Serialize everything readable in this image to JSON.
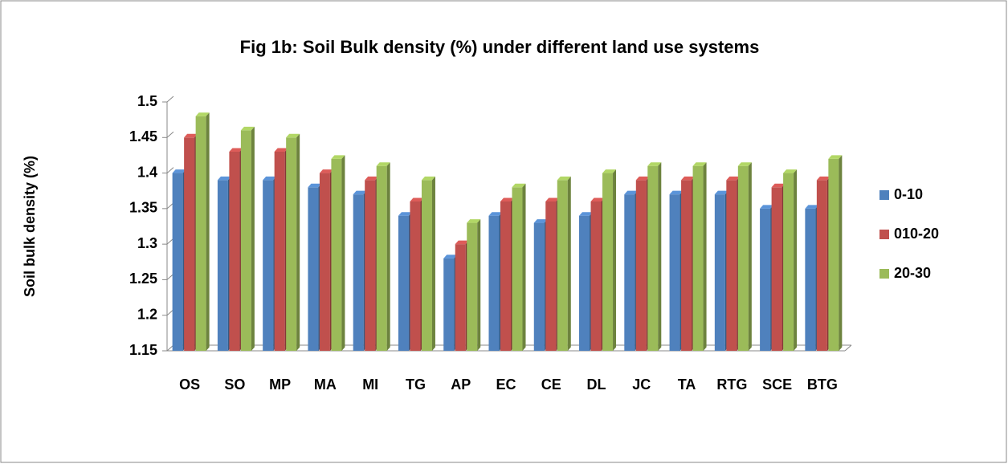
{
  "chart_data": {
    "type": "bar",
    "title": "Fig 1b: Soil Bulk density (%) under different land use systems",
    "y_label": "Soil bulk density (%)",
    "categories": [
      "OS",
      "SO",
      "MP",
      "MA",
      "MI",
      "TG",
      "AP",
      "EC",
      "CE",
      "DL",
      "JC",
      "TA",
      "RTG",
      "SCE",
      "BTG"
    ],
    "series": [
      {
        "name": "0-10",
        "color": "#4f81bd",
        "values": [
          1.4,
          1.39,
          1.39,
          1.38,
          1.37,
          1.34,
          1.28,
          1.34,
          1.33,
          1.34,
          1.37,
          1.37,
          1.37,
          1.35,
          1.35
        ]
      },
      {
        "name": "010-20",
        "color": "#c0504d",
        "values": [
          1.45,
          1.43,
          1.43,
          1.4,
          1.39,
          1.36,
          1.3,
          1.36,
          1.36,
          1.36,
          1.39,
          1.39,
          1.39,
          1.38,
          1.39
        ]
      },
      {
        "name": "20-30",
        "color": "#9bbb59",
        "values": [
          1.48,
          1.46,
          1.45,
          1.42,
          1.41,
          1.39,
          1.33,
          1.38,
          1.39,
          1.4,
          1.41,
          1.41,
          1.41,
          1.4,
          1.42
        ]
      }
    ],
    "ylim": [
      1.15,
      1.5
    ],
    "yticks": [
      1.15,
      1.2,
      1.25,
      1.3,
      1.35,
      1.4,
      1.45,
      1.5
    ],
    "grid": false,
    "legend": "right"
  }
}
